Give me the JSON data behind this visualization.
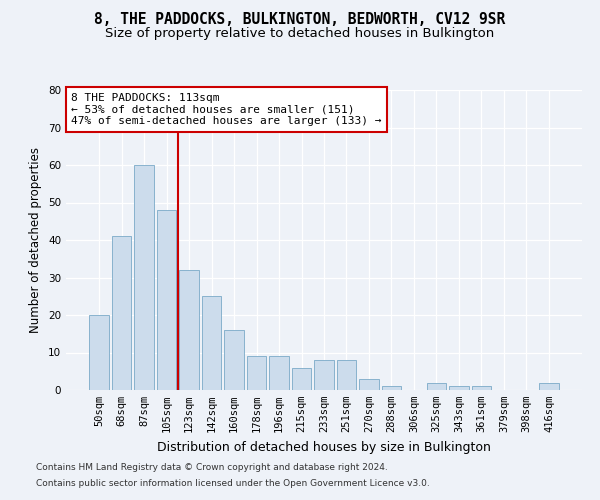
{
  "title1": "8, THE PADDOCKS, BULKINGTON, BEDWORTH, CV12 9SR",
  "title2": "Size of property relative to detached houses in Bulkington",
  "xlabel": "Distribution of detached houses by size in Bulkington",
  "ylabel": "Number of detached properties",
  "categories": [
    "50sqm",
    "68sqm",
    "87sqm",
    "105sqm",
    "123sqm",
    "142sqm",
    "160sqm",
    "178sqm",
    "196sqm",
    "215sqm",
    "233sqm",
    "251sqm",
    "270sqm",
    "288sqm",
    "306sqm",
    "325sqm",
    "343sqm",
    "361sqm",
    "379sqm",
    "398sqm",
    "416sqm"
  ],
  "values": [
    20,
    41,
    60,
    48,
    32,
    25,
    16,
    9,
    9,
    6,
    8,
    8,
    3,
    1,
    0,
    2,
    1,
    1,
    0,
    0,
    2
  ],
  "bar_color": "#ccdcec",
  "bar_edge_color": "#7aaac8",
  "vline_x": 3.5,
  "vline_color": "#cc0000",
  "annotation_text": "8 THE PADDOCKS: 113sqm\n← 53% of detached houses are smaller (151)\n47% of semi-detached houses are larger (133) →",
  "annotation_box_color": "#ffffff",
  "annotation_box_edge": "#cc0000",
  "ylim": [
    0,
    80
  ],
  "yticks": [
    0,
    10,
    20,
    30,
    40,
    50,
    60,
    70,
    80
  ],
  "footer1": "Contains HM Land Registry data © Crown copyright and database right 2024.",
  "footer2": "Contains public sector information licensed under the Open Government Licence v3.0.",
  "bg_color": "#eef2f8",
  "grid_color": "#ffffff",
  "title1_fontsize": 10.5,
  "title2_fontsize": 9.5,
  "xlabel_fontsize": 9,
  "ylabel_fontsize": 8.5,
  "tick_fontsize": 7.5,
  "annotation_fontsize": 8,
  "footer_fontsize": 6.5
}
